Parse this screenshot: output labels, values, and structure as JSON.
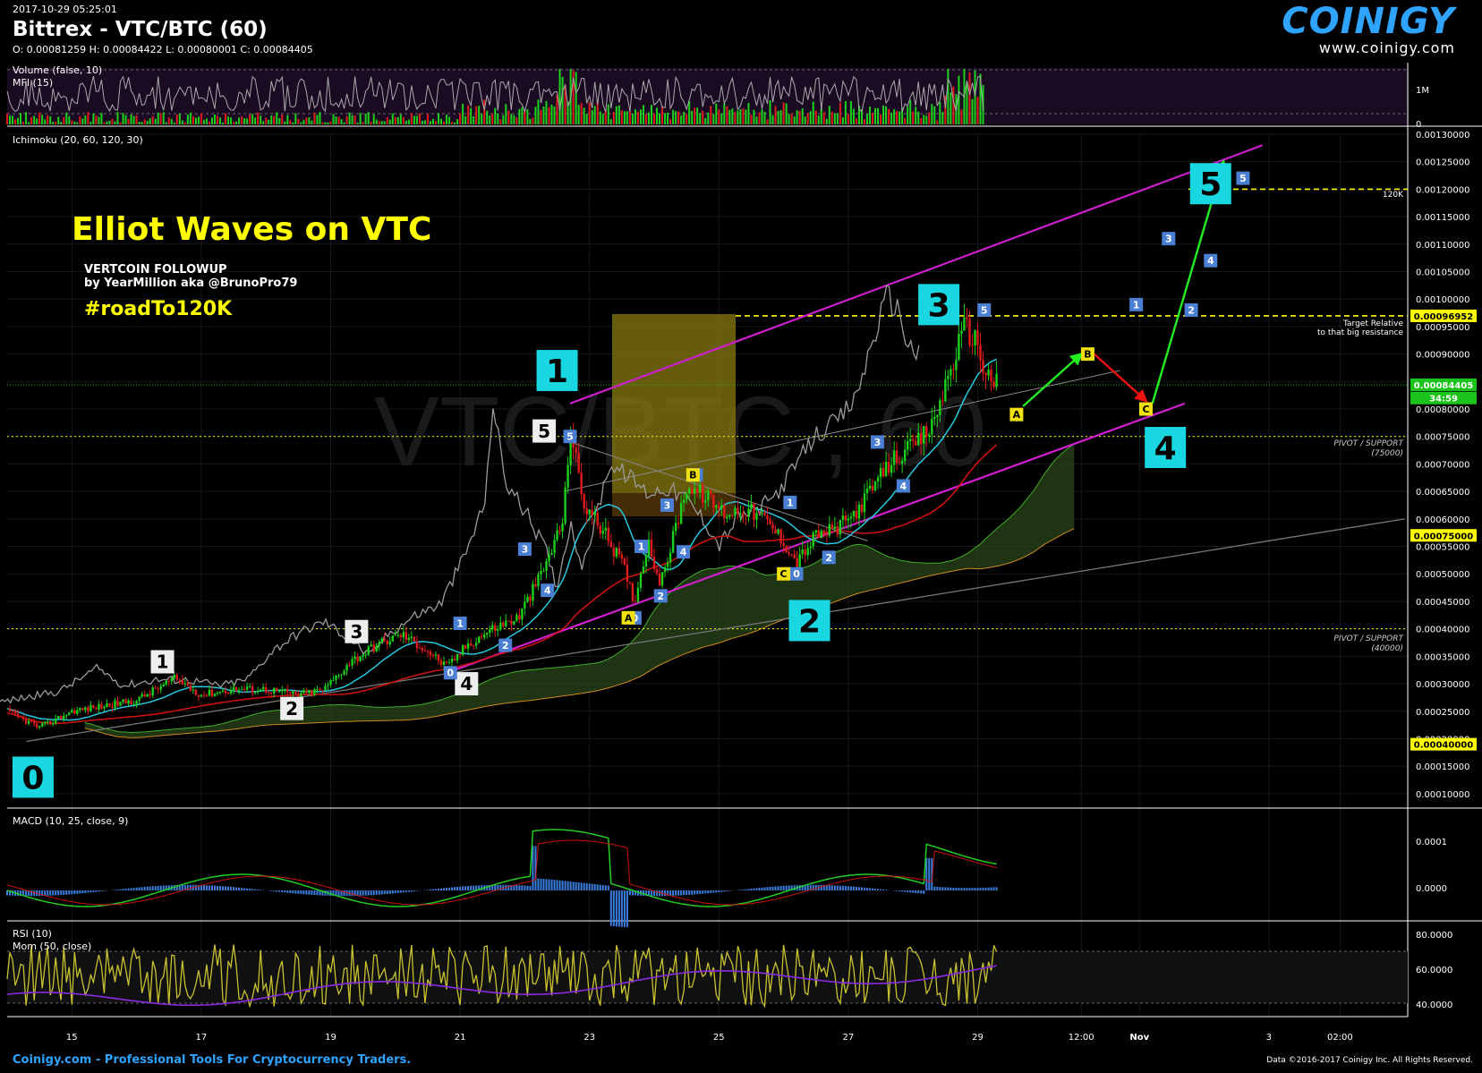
{
  "header": {
    "timestamp": "2017-10-29 05:25:01",
    "title": "Bittrex - VTC/BTC (60)",
    "ohlc": "O: 0.00081259 H: 0.00084422 L: 0.00080001 C: 0.00084405"
  },
  "logo": {
    "brand": "COINIGY",
    "url": "www.coinigy.com"
  },
  "watermark": "VTC/BTC , 60",
  "panels": {
    "volume": {
      "label1": "Volume (false, 10)",
      "label2": "MFI (15)",
      "ticks": [
        "1M",
        "0"
      ]
    },
    "main": {
      "label": "Ichimoku (20, 60, 120, 30)"
    },
    "macd": {
      "label": "MACD (10, 25, close, 9)",
      "ticks": [
        "0.0001",
        "0.0000"
      ]
    },
    "rsi": {
      "label1": "RSI (10)",
      "label2": "Mom (50, close)",
      "ticks": [
        "80.0000",
        "60.0000",
        "40.0000"
      ]
    }
  },
  "annotations": {
    "title": "Elliot Waves on VTC",
    "sub1": "VERTCOIN FOLLOWUP",
    "sub2": "by YearMillion aka @BrunoPro79",
    "hashtag": "#roadTo120K",
    "label_120k": "120K",
    "target_line1": "Target Relative",
    "target_line2": "to that big resistance",
    "pivot75_1": "PIVOT / SUPPORT",
    "pivot75_2": "(75000)",
    "pivot40_1": "PIVOT / SUPPORT",
    "pivot40_2": "(40000)"
  },
  "price_tags": [
    {
      "text": "0.00096952",
      "price": 0.00096952,
      "bg": "#ffff00",
      "fg": "#000"
    },
    {
      "text": "0.00084405",
      "price": 0.00084405,
      "bg": "#1bc41b",
      "fg": "#fff"
    },
    {
      "text": "34:59",
      "price": 0.00082,
      "bg": "#1bc41b",
      "fg": "#fff"
    },
    {
      "text": "0.00075000",
      "price": 0.00057,
      "bg": "#ffff00",
      "fg": "#000"
    },
    {
      "text": "0.00040000",
      "price": 0.00019,
      "bg": "#ffff00",
      "fg": "#000"
    }
  ],
  "footer": {
    "left": "Coinigy.com - Professional Tools For Cryptocurrency Traders.",
    "right": "Data ©2016-2017 Coinigy Inc. All Rights Reserved."
  },
  "chart_data": {
    "type": "line",
    "title": "Bittrex - VTC/BTC (60)",
    "x_ticks": [
      "15",
      "17",
      "19",
      "21",
      "23",
      "25",
      "27",
      "29",
      "12:00",
      "Nov",
      "3",
      "02:00"
    ],
    "y_ticks": [
      "0.00130000",
      "0.00125000",
      "0.00120000",
      "0.00115000",
      "0.00110000",
      "0.00105000",
      "0.00100000",
      "0.00095000",
      "0.00090000",
      "0.00085000",
      "0.00080000",
      "0.00075000",
      "0.00070000",
      "0.00065000",
      "0.00060000",
      "0.00055000",
      "0.00050000",
      "0.00045000",
      "0.00040000",
      "0.00035000",
      "0.00030000",
      "0.00025000",
      "0.00020000",
      "0.00015000",
      "0.00010000"
    ],
    "ylim": [
      9e-05,
      0.0013
    ],
    "grid": true,
    "series": [
      {
        "values": [
          [
            14.0,
            0.00025
          ],
          [
            14.5,
            0.00022
          ],
          [
            15.0,
            0.00025
          ],
          [
            15.5,
            0.00026
          ],
          [
            16.0,
            0.00027
          ],
          [
            16.3,
            0.00029
          ],
          [
            16.6,
            0.00031
          ],
          [
            17.0,
            0.00028
          ],
          [
            17.5,
            0.00029
          ],
          [
            18.0,
            0.00029
          ],
          [
            18.5,
            0.00028
          ],
          [
            18.9,
            0.00029
          ],
          [
            19.3,
            0.00034
          ],
          [
            19.7,
            0.00037
          ],
          [
            20.1,
            0.00039
          ],
          [
            20.5,
            0.00036
          ],
          [
            20.8,
            0.00033
          ],
          [
            21.1,
            0.00037
          ],
          [
            21.5,
            0.0004
          ],
          [
            21.9,
            0.00042
          ],
          [
            22.3,
            0.00051
          ],
          [
            22.6,
            0.0006
          ],
          [
            22.7,
            0.00077
          ],
          [
            22.9,
            0.00063
          ],
          [
            23.2,
            0.00058
          ],
          [
            23.5,
            0.00052
          ],
          [
            23.7,
            0.00045
          ],
          [
            23.9,
            0.00056
          ],
          [
            24.1,
            0.00048
          ],
          [
            24.3,
            0.00057
          ],
          [
            24.5,
            0.00066
          ],
          [
            24.8,
            0.00064
          ],
          [
            25.1,
            0.00061
          ],
          [
            25.4,
            0.00062
          ],
          [
            25.7,
            0.0006
          ],
          [
            26.0,
            0.00056
          ],
          [
            26.2,
            0.00052
          ],
          [
            26.5,
            0.00057
          ],
          [
            26.8,
            0.00058
          ],
          [
            27.1,
            0.00061
          ],
          [
            27.4,
            0.00066
          ],
          [
            27.7,
            0.00071
          ],
          [
            28.0,
            0.00073
          ],
          [
            28.3,
            0.00077
          ],
          [
            28.6,
            0.00088
          ],
          [
            28.8,
            0.00095
          ],
          [
            29.0,
            0.00092
          ],
          [
            29.1,
            0.00087
          ],
          [
            29.3,
            0.00084405
          ]
        ]
      }
    ],
    "waves": {
      "primary": [
        {
          "label": "0",
          "x": 14.4,
          "price": 0.00013
        },
        {
          "label": "1",
          "x": 22.5,
          "price": 0.00087
        },
        {
          "label": "2",
          "x": 26.4,
          "price": 0.000415
        },
        {
          "label": "3",
          "x": 28.4,
          "price": 0.00099
        },
        {
          "label": "4",
          "x": 31.9,
          "price": 0.00073
        },
        {
          "label": "5",
          "x": 32.6,
          "price": 0.00121
        }
      ],
      "intermediate": [
        {
          "label": "1",
          "x": 16.4,
          "price": 0.00034
        },
        {
          "label": "2",
          "x": 18.4,
          "price": 0.000255
        },
        {
          "label": "3",
          "x": 19.4,
          "price": 0.000395
        },
        {
          "label": "4",
          "x": 21.1,
          "price": 0.0003
        },
        {
          "label": "5",
          "x": 22.3,
          "price": 0.00076
        }
      ],
      "minor": [
        {
          "label": "0",
          "x": 20.85,
          "price": 0.00032
        },
        {
          "label": "1",
          "x": 21.0,
          "price": 0.00041
        },
        {
          "label": "2",
          "x": 21.7,
          "price": 0.00037
        },
        {
          "label": "3",
          "x": 22.0,
          "price": 0.000545
        },
        {
          "label": "4",
          "x": 22.35,
          "price": 0.00047
        },
        {
          "label": "5",
          "x": 22.7,
          "price": 0.00075
        },
        {
          "label": "0",
          "x": 23.7,
          "price": 0.00042
        },
        {
          "label": "1",
          "x": 23.8,
          "price": 0.00055
        },
        {
          "label": "2",
          "x": 24.1,
          "price": 0.00046
        },
        {
          "label": "3",
          "x": 24.2,
          "price": 0.000625
        },
        {
          "label": "4",
          "x": 24.45,
          "price": 0.00054
        },
        {
          "label": "5",
          "x": 24.65,
          "price": 0.00068
        },
        {
          "label": "0",
          "x": 26.2,
          "price": 0.0005
        },
        {
          "label": "1",
          "x": 26.1,
          "price": 0.00063
        },
        {
          "label": "2",
          "x": 26.7,
          "price": 0.00053
        },
        {
          "label": "3",
          "x": 27.45,
          "price": 0.00074
        },
        {
          "label": "4",
          "x": 27.85,
          "price": 0.00066
        },
        {
          "label": "5",
          "x": 29.1,
          "price": 0.00098
        },
        {
          "label": "1",
          "x": 31.45,
          "price": 0.00099
        },
        {
          "label": "2",
          "x": 32.3,
          "price": 0.00098
        },
        {
          "label": "3",
          "x": 31.95,
          "price": 0.00111
        },
        {
          "label": "4",
          "x": 32.6,
          "price": 0.00107
        },
        {
          "label": "5",
          "x": 33.1,
          "price": 0.00122
        }
      ],
      "corrective": [
        {
          "label": "A",
          "x": 23.6,
          "price": 0.00042
        },
        {
          "label": "B",
          "x": 24.6,
          "price": 0.00068
        },
        {
          "label": "C",
          "x": 26.0,
          "price": 0.0005
        },
        {
          "label": "A",
          "x": 29.6,
          "price": 0.00079
        },
        {
          "label": "B",
          "x": 30.7,
          "price": 0.0009
        },
        {
          "label": "C",
          "x": 31.6,
          "price": 0.0008
        }
      ]
    },
    "levels": [
      0.0012,
      0.00096952,
      0.00075,
      0.0004
    ]
  }
}
